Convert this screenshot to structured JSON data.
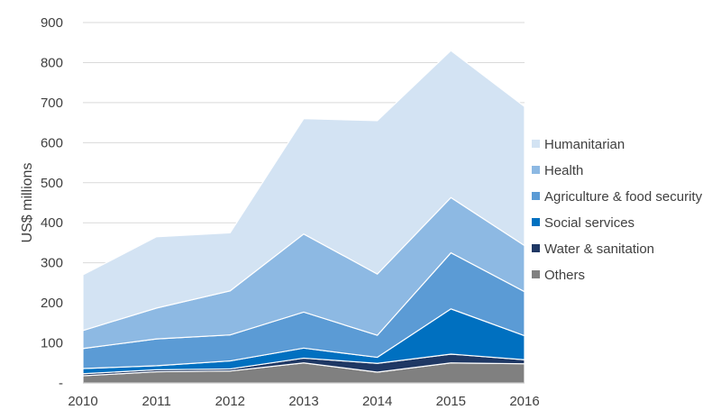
{
  "chart_data": {
    "type": "area",
    "stacked": true,
    "title": "",
    "xlabel": "",
    "ylabel": "US$ millions",
    "x": [
      "2010",
      "2011",
      "2012",
      "2013",
      "2014",
      "2015",
      "2016"
    ],
    "ylim": [
      0,
      900
    ],
    "yticks": [
      0,
      100,
      200,
      300,
      400,
      500,
      600,
      700,
      800,
      900
    ],
    "ytick_labels": [
      "-",
      "100",
      "200",
      "300",
      "400",
      "500",
      "600",
      "700",
      "800",
      "900"
    ],
    "grid": "horizontal",
    "legend_position": "right",
    "series": [
      {
        "name": "Others",
        "color": "#808080",
        "values": [
          18,
          28,
          30,
          50,
          27,
          50,
          48
        ]
      },
      {
        "name": "Water & sanitation",
        "color": "#1f3864",
        "values": [
          5,
          5,
          5,
          12,
          22,
          22,
          10
        ]
      },
      {
        "name": "Social services",
        "color": "#0070c0",
        "values": [
          13,
          10,
          20,
          25,
          15,
          113,
          60
        ]
      },
      {
        "name": "Agriculture & food security",
        "color": "#5b9bd5",
        "values": [
          50,
          67,
          65,
          90,
          55,
          140,
          110
        ]
      },
      {
        "name": "Health",
        "color": "#8db9e3",
        "values": [
          45,
          77,
          110,
          195,
          153,
          138,
          115
        ]
      },
      {
        "name": "Humanitarian",
        "color": "#d3e3f3",
        "values": [
          139,
          178,
          145,
          288,
          383,
          367,
          347
        ]
      }
    ]
  }
}
